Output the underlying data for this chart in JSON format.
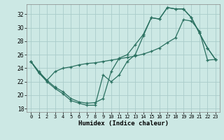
{
  "xlabel": "Humidex (Indice chaleur)",
  "xlim": [
    -0.5,
    23.5
  ],
  "ylim": [
    17.5,
    33.5
  ],
  "yticks": [
    18,
    20,
    22,
    24,
    26,
    28,
    30,
    32
  ],
  "xticks": [
    0,
    1,
    2,
    3,
    4,
    5,
    6,
    7,
    8,
    9,
    10,
    11,
    12,
    13,
    14,
    15,
    16,
    17,
    18,
    19,
    20,
    21,
    22,
    23
  ],
  "background_color": "#cce8e4",
  "grid_color": "#aaccca",
  "line_color": "#2a7060",
  "curve_a_y": [
    25.0,
    23.3,
    22.0,
    21.0,
    20.2,
    19.2,
    18.8,
    18.5,
    18.5,
    23.0,
    22.0,
    23.0,
    25.0,
    26.0,
    28.8,
    31.5,
    31.3,
    33.0,
    32.8,
    32.8,
    31.5,
    29.2,
    27.0,
    25.3
  ],
  "curve_b_y": [
    25.0,
    23.3,
    22.2,
    21.2,
    20.5,
    19.5,
    19.0,
    18.8,
    18.9,
    19.5,
    23.5,
    25.5,
    26.0,
    27.5,
    29.0,
    31.5,
    31.3,
    33.0,
    32.8,
    32.8,
    31.5,
    29.2,
    27.0,
    25.3
  ],
  "curve_c_y": [
    25.0,
    23.5,
    22.2,
    23.5,
    24.0,
    24.2,
    24.5,
    24.7,
    24.8,
    25.0,
    25.2,
    25.4,
    25.6,
    25.8,
    26.1,
    26.5,
    27.0,
    27.8,
    28.5,
    31.2,
    31.0,
    29.5,
    25.2,
    25.3
  ]
}
